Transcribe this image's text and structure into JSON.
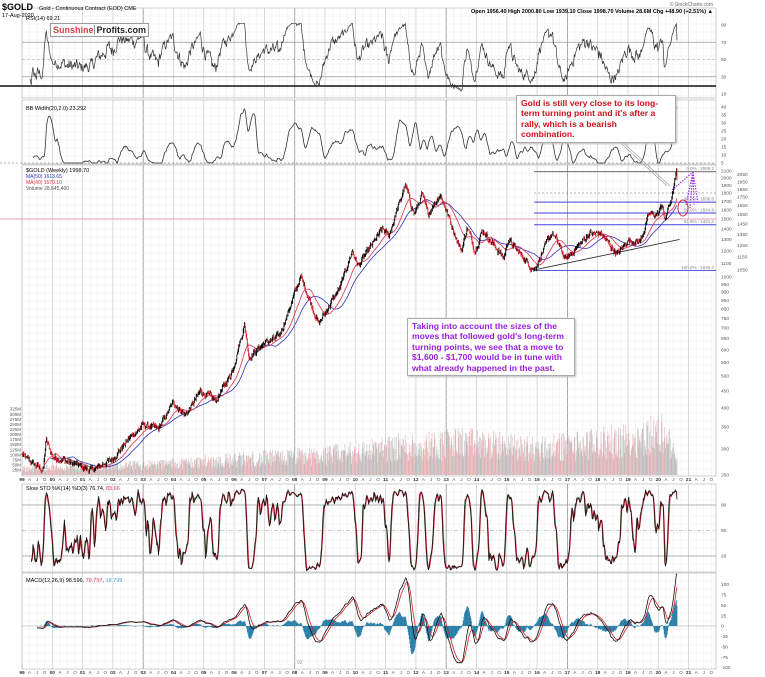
{
  "header": {
    "symbol": "$GOLD",
    "name": "Gold - Continuous Contract (EOD) CME",
    "date": "17-Aug-2020",
    "source": "© StockCharts.com",
    "quote": "Open 1956.40  High 2000.80  Low 1939.10  Close 1998.70  Volume 28.6M  Chg +48.90 (+2.51%) ▲"
  },
  "logo": {
    "part1": "Sunshine",
    "part2": "Profits.com"
  },
  "annotations": {
    "turning_point": "Gold is still very close to its long-term turning point and it's after a rally, which is a bearish combination.",
    "moves": "Taking into account the sizes of the moves that followed gold's long-term turning points, we see that a move to $1,600 - $1,700 would be in tune with what already happened in the past."
  },
  "colors": {
    "up": "#000000",
    "down": "#d0202a",
    "ma_blue": "#3030c0",
    "ma_red": "#e0304a",
    "macd_hist": "#2a7fa8",
    "fib": "#4040e0",
    "arrow": "#a020f0",
    "resistance": "#e8a0a8"
  },
  "chart_data": {
    "type": "line",
    "panels": [
      {
        "id": "rsi",
        "label": "RSI(14) 69.21",
        "ticks": [
          90,
          70,
          50,
          30,
          10
        ]
      },
      {
        "id": "bbw",
        "label": "BB Width(20,2.0) 23.292",
        "ticks": [
          40,
          35,
          30,
          25,
          20,
          15,
          10,
          5
        ]
      },
      {
        "id": "price",
        "label": "$GOLD (Weekly) 1998.70",
        "ma_labels": [
          "MA(50) 1613.65",
          "MA(40) 1570.10"
        ],
        "volume_label": "Volume 28,645,400",
        "scale": "log",
        "ticks": [
          2100,
          2050,
          2000,
          1950,
          1900,
          1850,
          1800,
          1750,
          1700,
          1650,
          1600,
          1550,
          1500,
          1450,
          1400,
          1350,
          1300,
          1250,
          1200,
          1150,
          1100,
          1050,
          1000,
          950,
          900,
          850,
          800,
          750,
          700,
          650,
          600,
          550,
          500,
          450,
          400,
          350,
          300,
          250
        ],
        "volume_ticks": [
          "325M",
          "300M",
          "275M",
          "250M",
          "225M",
          "200M",
          "175M",
          "150M",
          "125M",
          "100M",
          "75M",
          "50M",
          "25M"
        ]
      },
      {
        "id": "sto",
        "label_main": "Slow STO %K(14) %D(3) 76.74, ",
        "label_d": "83.66",
        "ticks": [
          80,
          50,
          20
        ]
      },
      {
        "id": "macd",
        "label_main": "MACD(12,26,9) 98.596, ",
        "label_signal": "79.797",
        "label_sep": ", ",
        "label_hist": "18.799",
        "ticks": [
          100,
          75,
          50,
          25,
          0,
          -25,
          -50,
          -75,
          -100
        ]
      }
    ],
    "x_range": [
      "1999-01",
      "2021-12"
    ],
    "year_labels": [
      "99",
      "00",
      "01",
      "02",
      "03",
      "04",
      "05",
      "06",
      "07",
      "08",
      "09",
      "10",
      "11",
      "12",
      "13",
      "14",
      "15",
      "16",
      "17",
      "18",
      "19",
      "20",
      "21"
    ],
    "quarter_labels": [
      "A",
      "J",
      "O"
    ],
    "price_path": [
      [
        1999.0,
        287
      ],
      [
        1999.7,
        258
      ],
      [
        1999.8,
        320
      ],
      [
        2000.0,
        285
      ],
      [
        2001.3,
        258
      ],
      [
        2002.0,
        280
      ],
      [
        2002.5,
        320
      ],
      [
        2003.0,
        355
      ],
      [
        2003.5,
        345
      ],
      [
        2004.0,
        415
      ],
      [
        2004.4,
        380
      ],
      [
        2004.9,
        450
      ],
      [
        2005.4,
        420
      ],
      [
        2005.95,
        520
      ],
      [
        2006.35,
        720
      ],
      [
        2006.5,
        570
      ],
      [
        2007.0,
        630
      ],
      [
        2007.5,
        660
      ],
      [
        2008.2,
        1000
      ],
      [
        2008.8,
        720
      ],
      [
        2009.5,
        930
      ],
      [
        2009.9,
        1200
      ],
      [
        2010.1,
        1080
      ],
      [
        2010.9,
        1400
      ],
      [
        2011.1,
        1330
      ],
      [
        2011.65,
        1900
      ],
      [
        2011.95,
        1550
      ],
      [
        2012.2,
        1780
      ],
      [
        2012.4,
        1550
      ],
      [
        2012.8,
        1790
      ],
      [
        2013.5,
        1200
      ],
      [
        2013.7,
        1420
      ],
      [
        2013.95,
        1200
      ],
      [
        2014.2,
        1390
      ],
      [
        2014.9,
        1140
      ],
      [
        2015.05,
        1300
      ],
      [
        2015.9,
        1050
      ],
      [
        2016.5,
        1370
      ],
      [
        2016.95,
        1130
      ],
      [
        2017.7,
        1350
      ],
      [
        2018.1,
        1360
      ],
      [
        2018.65,
        1170
      ],
      [
        2019.0,
        1290
      ],
      [
        2019.4,
        1280
      ],
      [
        2019.7,
        1550
      ],
      [
        2020.0,
        1550
      ],
      [
        2020.15,
        1680
      ],
      [
        2020.2,
        1470
      ],
      [
        2020.45,
        1750
      ],
      [
        2020.6,
        2070
      ],
      [
        2020.63,
        1998.7
      ]
    ],
    "volume_path_millions": [
      [
        1999.0,
        30
      ],
      [
        2003.0,
        45
      ],
      [
        2006.0,
        70
      ],
      [
        2009.0,
        90
      ],
      [
        2011.5,
        130
      ],
      [
        2013.5,
        150
      ],
      [
        2016.0,
        120
      ],
      [
        2019.0,
        160
      ],
      [
        2020.2,
        200
      ],
      [
        2020.63,
        60
      ]
    ],
    "fibonacci": [
      {
        "label": "0.0% : 2089.2",
        "value": 2089.2
      },
      {
        "label": "38.2% : 1688.6",
        "value": 1688.6
      },
      {
        "label": "50.0% : 1564.8",
        "value": 1564.8
      },
      {
        "label": "61.8% : 1441.2",
        "value": 1441.2
      },
      {
        "label": "100.0% : 1046.7",
        "value": 1046.7
      }
    ],
    "resistance_level": 1500,
    "trendline": [
      [
        2015.9,
        1050
      ],
      [
        2020.7,
        1300
      ]
    ],
    "macd_min_label": "92"
  }
}
